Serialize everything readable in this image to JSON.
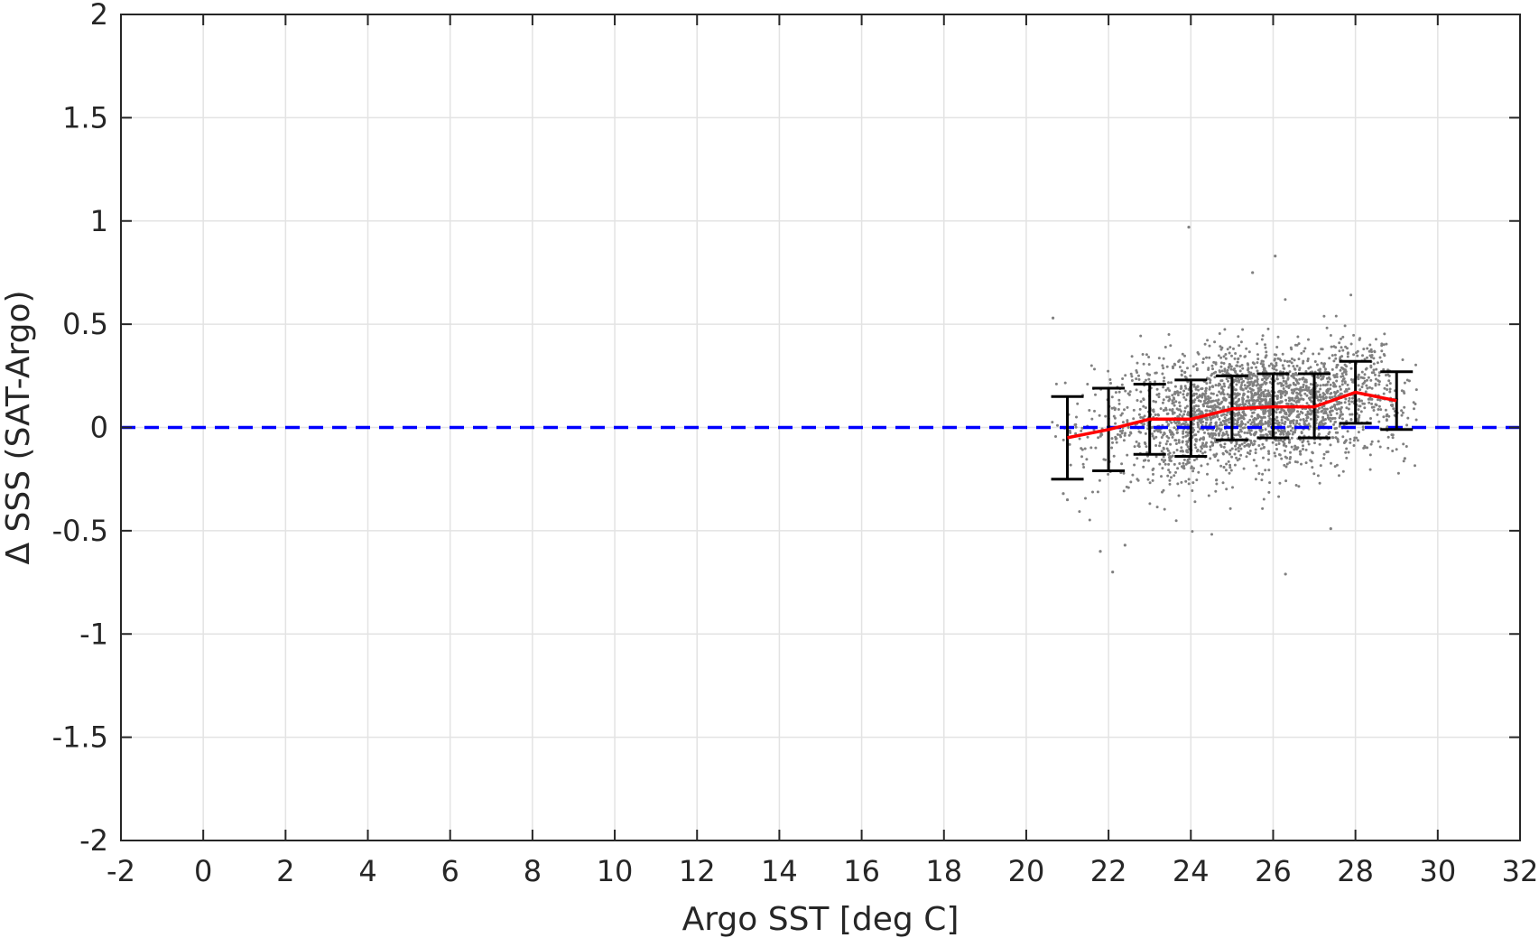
{
  "chart_data": {
    "type": "scatter",
    "title": "",
    "xlabel": "Argo SST [deg C]",
    "ylabel": "Δ SSS (SAT-Argo)",
    "xlim": [
      -2,
      32
    ],
    "ylim": [
      -2,
      2
    ],
    "xticks": [
      -2,
      0,
      2,
      4,
      6,
      8,
      10,
      12,
      14,
      16,
      18,
      20,
      22,
      24,
      26,
      28,
      30,
      32
    ],
    "yticks": [
      -2,
      -1.5,
      -1,
      -0.5,
      0,
      0.5,
      1,
      1.5,
      2
    ],
    "xtick_labels": [
      "-2",
      "0",
      "2",
      "4",
      "6",
      "8",
      "10",
      "12",
      "14",
      "16",
      "18",
      "20",
      "22",
      "24",
      "26",
      "28",
      "30",
      "32"
    ],
    "ytick_labels": [
      "-2",
      "-1.5",
      "-1",
      "-0.5",
      "0",
      "0.5",
      "1",
      "1.5",
      "2"
    ],
    "grid": true,
    "legend": "none",
    "scatter": {
      "color": "#808080",
      "x_range": [
        20.6,
        29.5
      ],
      "y_center_range": [
        -0.05,
        0.17
      ],
      "count": 2600,
      "outliers": [
        {
          "x": 20.65,
          "y": 0.53
        },
        {
          "x": 23.95,
          "y": 0.97
        },
        {
          "x": 25.5,
          "y": 0.75
        },
        {
          "x": 26.05,
          "y": 0.83
        },
        {
          "x": 26.3,
          "y": -0.71
        },
        {
          "x": 22.1,
          "y": -0.7
        },
        {
          "x": 21.8,
          "y": -0.6
        },
        {
          "x": 22.4,
          "y": -0.57
        },
        {
          "x": 27.4,
          "y": -0.49
        },
        {
          "x": 29.2,
          "y": -0.15
        },
        {
          "x": 21.0,
          "y": -0.35
        },
        {
          "x": 20.9,
          "y": -0.32
        }
      ]
    },
    "mean_line": {
      "color": "#ff0000",
      "x": [
        21,
        22,
        23,
        24,
        25,
        26,
        27,
        28,
        29
      ],
      "y": [
        -0.05,
        -0.01,
        0.04,
        0.04,
        0.09,
        0.1,
        0.1,
        0.17,
        0.13
      ]
    },
    "error_bars": {
      "color": "#000000",
      "x": [
        21,
        22,
        23,
        24,
        25,
        26,
        27,
        28,
        29
      ],
      "low": [
        -0.25,
        -0.21,
        -0.13,
        -0.14,
        -0.06,
        -0.05,
        -0.05,
        0.02,
        -0.01
      ],
      "high": [
        0.15,
        0.19,
        0.21,
        0.23,
        0.25,
        0.26,
        0.26,
        0.32,
        0.27
      ]
    },
    "zero_line": {
      "color": "#0000ff",
      "y": 0,
      "style": "dashed"
    }
  }
}
